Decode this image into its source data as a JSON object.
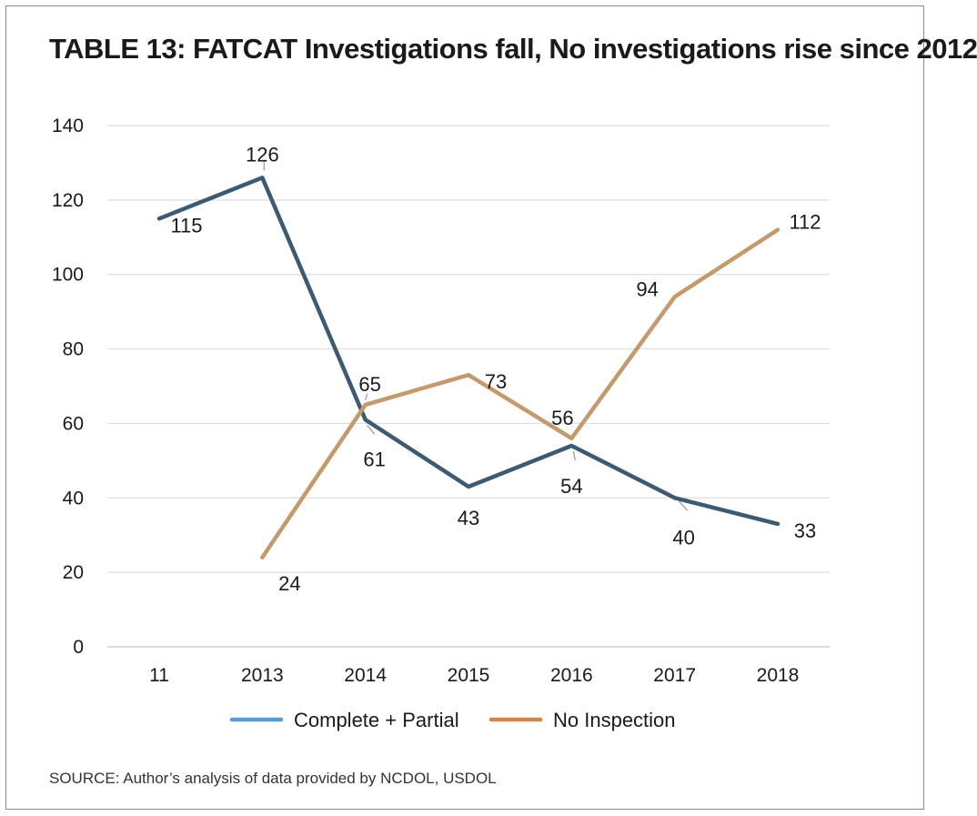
{
  "title": "TABLE 13:  FATCAT Investigations fall, No investigations rise since 2012",
  "source": "SOURCE:  Author’s analysis of data provided by NCDOL, USDOL",
  "chart_data": {
    "type": "line",
    "categories": [
      "11",
      "2013",
      "2014",
      "2015",
      "2016",
      "2017",
      "2018"
    ],
    "ylim": [
      0,
      140
    ],
    "yticks": [
      0,
      20,
      40,
      60,
      80,
      100,
      120,
      140
    ],
    "grid": true,
    "legend_position": "bottom",
    "series": [
      {
        "name": "Complete + Partial",
        "color": "#3d5a73",
        "legend_color": "#5b9bd5",
        "values": [
          115,
          126,
          61,
          43,
          54,
          40,
          33
        ]
      },
      {
        "name": "No Inspection",
        "color": "#c49a6c",
        "legend_color": "#d4864a",
        "values": [
          null,
          24,
          65,
          73,
          56,
          94,
          112
        ]
      }
    ]
  }
}
